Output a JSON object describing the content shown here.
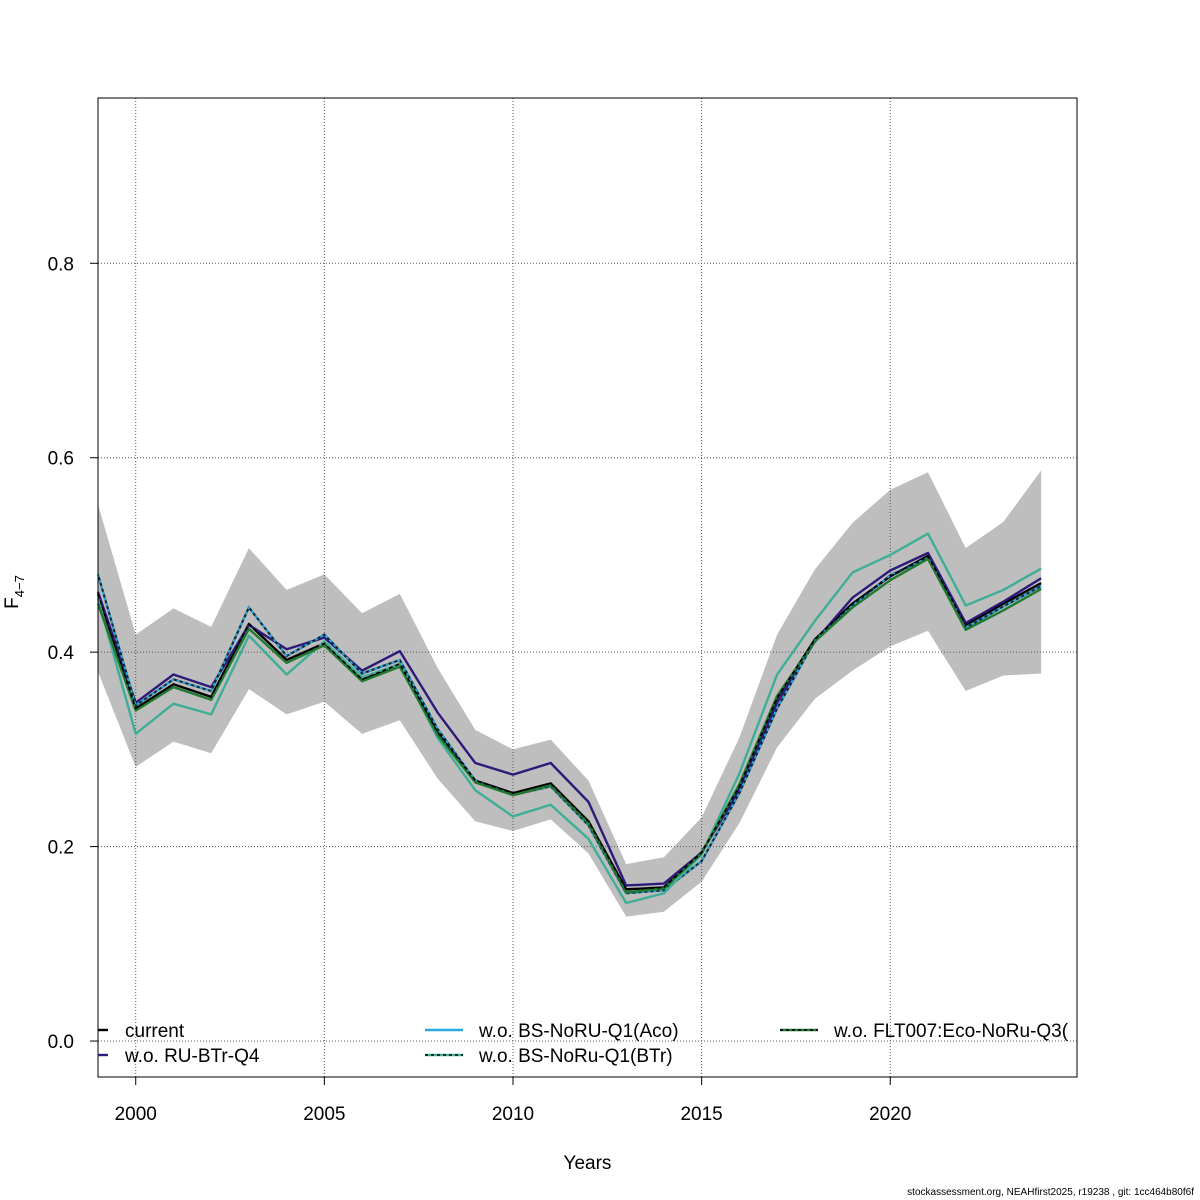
{
  "chart_data": {
    "type": "line",
    "title": "",
    "xlabel": "Years",
    "ylabel_main": "F",
    "ylabel_sub": "4−7",
    "xlim": [
      1999,
      2024.95
    ],
    "ylim": [
      -0.037,
      0.97
    ],
    "x_ticks": [
      2000,
      2005,
      2010,
      2015,
      2020
    ],
    "y_ticks": [
      0.0,
      0.2,
      0.4,
      0.6,
      0.8
    ],
    "y_tick_labels": [
      "0.0",
      "0.2",
      "0.4",
      "0.6",
      "0.8"
    ],
    "grid": true,
    "legend_position": "bottom",
    "x": [
      1999,
      2000,
      2001,
      2002,
      2003,
      2004,
      2005,
      2006,
      2007,
      2008,
      2009,
      2010,
      2011,
      2012,
      2013,
      2014,
      2015,
      2016,
      2017,
      2018,
      2019,
      2020,
      2021,
      2022,
      2023,
      2024
    ],
    "band": {
      "color": "#bebebe",
      "upper": [
        0.552,
        0.418,
        0.445,
        0.426,
        0.507,
        0.464,
        0.48,
        0.44,
        0.46,
        0.384,
        0.32,
        0.3,
        0.31,
        0.268,
        0.182,
        0.189,
        0.23,
        0.312,
        0.418,
        0.485,
        0.533,
        0.567,
        0.585,
        0.507,
        0.534,
        0.587
      ],
      "lower": [
        0.38,
        0.282,
        0.308,
        0.296,
        0.362,
        0.336,
        0.349,
        0.316,
        0.33,
        0.27,
        0.226,
        0.216,
        0.228,
        0.193,
        0.128,
        0.133,
        0.164,
        0.224,
        0.302,
        0.352,
        0.381,
        0.406,
        0.422,
        0.36,
        0.376,
        0.378
      ]
    },
    "series": [
      {
        "name": "current",
        "color": "#000000",
        "values": [
          0.46,
          0.342,
          0.367,
          0.354,
          0.429,
          0.392,
          0.409,
          0.372,
          0.388,
          0.318,
          0.268,
          0.255,
          0.265,
          0.226,
          0.156,
          0.158,
          0.194,
          0.262,
          0.353,
          0.413,
          0.45,
          0.478,
          0.499,
          0.428,
          0.45,
          0.471
        ]
      },
      {
        "name": "w.o. RU-BTr-Q4",
        "color": "#2e1a7a",
        "values": [
          0.462,
          0.348,
          0.377,
          0.364,
          0.428,
          0.403,
          0.415,
          0.381,
          0.401,
          0.338,
          0.286,
          0.274,
          0.286,
          0.246,
          0.16,
          0.162,
          0.194,
          0.258,
          0.348,
          0.411,
          0.456,
          0.484,
          0.502,
          0.43,
          0.452,
          0.476
        ]
      },
      {
        "name": "w.o. BS-NoRU-Q1(Aco)",
        "color": "#2aa8e0",
        "dashed": true,
        "values": [
          0.48,
          0.345,
          0.372,
          0.36,
          0.446,
          0.396,
          0.418,
          0.378,
          0.392,
          0.321,
          0.268,
          0.253,
          0.262,
          0.222,
          0.152,
          0.155,
          0.185,
          0.255,
          0.342,
          0.412,
          0.448,
          0.479,
          0.497,
          0.425,
          0.447,
          0.468
        ]
      },
      {
        "name": "w.o. BS-NoRu-Q1(BTr)",
        "color": "#3fae96",
        "values": [
          0.455,
          0.316,
          0.347,
          0.336,
          0.417,
          0.377,
          0.411,
          0.374,
          0.388,
          0.312,
          0.258,
          0.231,
          0.243,
          0.208,
          0.142,
          0.152,
          0.192,
          0.275,
          0.377,
          0.432,
          0.482,
          0.5,
          0.522,
          0.448,
          0.464,
          0.486
        ]
      },
      {
        "name": "w.o. FLT007:Eco-NoRu-Q3(",
        "color": "#1f7a2f",
        "values": [
          0.45,
          0.34,
          0.364,
          0.351,
          0.424,
          0.389,
          0.407,
          0.37,
          0.385,
          0.315,
          0.266,
          0.253,
          0.263,
          0.224,
          0.153,
          0.157,
          0.193,
          0.264,
          0.355,
          0.411,
          0.446,
          0.474,
          0.496,
          0.423,
          0.443,
          0.465
        ]
      }
    ]
  },
  "footer_text": "stockassessment.org, NEAHfirst2025, r19238 , git: 1cc464b80f6f"
}
